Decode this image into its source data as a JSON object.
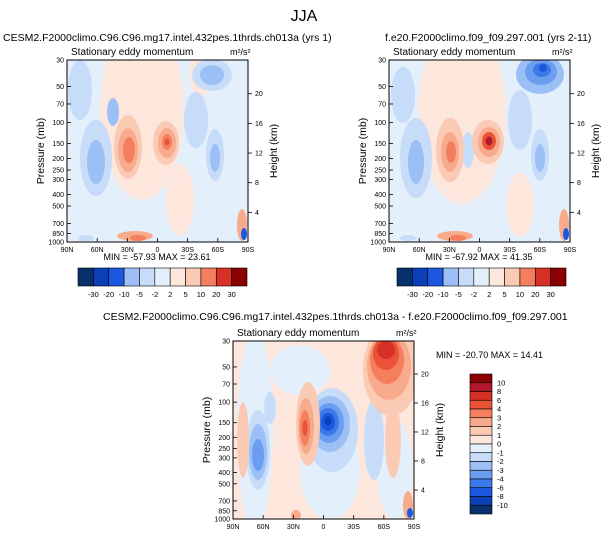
{
  "figure_title": "JJA",
  "colors": {
    "neg": [
      "#08306b",
      "#0b3fb8",
      "#1c57e0",
      "#3d7ae8",
      "#6b9ef0",
      "#9cbff5",
      "#c6dcf9",
      "#e4effc"
    ],
    "pos": [
      "#fde7dd",
      "#fbcab5",
      "#f8ab8c",
      "#f47e5e",
      "#eb5338",
      "#d73027",
      "#b2182b",
      "#8b0000"
    ]
  },
  "chart_data": [
    {
      "id": "p1",
      "type": "heatmap",
      "title": "CESM2.F2000climo.C96.C96.mg17.intel.432pes.1thrds.ch013a (yrs 1)",
      "subtitle": "Stationary eddy momentum",
      "units": "m²/s²",
      "ylabel": "Pressure (mb)",
      "ylabel_right": "Height (km)",
      "x_ticks": [
        "90N",
        "60N",
        "30N",
        "0",
        "30S",
        "60S",
        "90S"
      ],
      "y_ticks": [
        "30",
        "50",
        "70",
        "100",
        "150",
        "200",
        "250",
        "300",
        "400",
        "500",
        "700",
        "850",
        "1000"
      ],
      "y_ticks_right": [
        "20",
        "16",
        "12",
        "8",
        "4"
      ],
      "stats": "MIN = -57.93  MAX = 23.61",
      "colorbar_labels": [
        "-30",
        "-20",
        "-10",
        "-5",
        "-2",
        "2",
        "5",
        "10",
        "20",
        "30"
      ]
    },
    {
      "id": "p2",
      "type": "heatmap",
      "title": "f.e20.F2000climo.f09_f09.297.001 (yrs 2-11)",
      "subtitle": "Stationary eddy momentum",
      "units": "m²/s²",
      "ylabel": "Pressure (mb)",
      "ylabel_right": "Height (km)",
      "x_ticks": [
        "90N",
        "60N",
        "30N",
        "0",
        "30S",
        "60S",
        "90S"
      ],
      "y_ticks": [
        "30",
        "50",
        "70",
        "100",
        "150",
        "200",
        "250",
        "300",
        "400",
        "500",
        "700",
        "850",
        "1000"
      ],
      "y_ticks_right": [
        "20",
        "16",
        "12",
        "8",
        "4"
      ],
      "stats": "MIN = -67.92  MAX = 41.35",
      "colorbar_labels": [
        "-30",
        "-20",
        "-10",
        "-5",
        "-2",
        "2",
        "5",
        "10",
        "20",
        "30"
      ]
    },
    {
      "id": "p3",
      "type": "heatmap",
      "title": "CESM2.F2000climo.C96.C96.mg17.intel.432pes.1thrds.ch013a - f.e20.F2000climo.f09_f09.297.001",
      "subtitle": "Stationary eddy momentum",
      "units": "m²/s²",
      "ylabel": "Pressure (mb)",
      "ylabel_right": "Height (km)",
      "x_ticks": [
        "90N",
        "60N",
        "30N",
        "0",
        "30S",
        "60S",
        "90S"
      ],
      "y_ticks": [
        "30",
        "50",
        "70",
        "100",
        "150",
        "200",
        "250",
        "300",
        "400",
        "500",
        "700",
        "850",
        "1000"
      ],
      "y_ticks_right": [
        "20",
        "16",
        "12",
        "8",
        "4"
      ],
      "stats": "MIN = -20.70  MAX = 14.41",
      "colorbar_labels": [
        "10",
        "8",
        "6",
        "4",
        "3",
        "2",
        "1",
        "0",
        "-1",
        "-2",
        "-3",
        "-4",
        "-6",
        "-8",
        "-10"
      ]
    }
  ]
}
